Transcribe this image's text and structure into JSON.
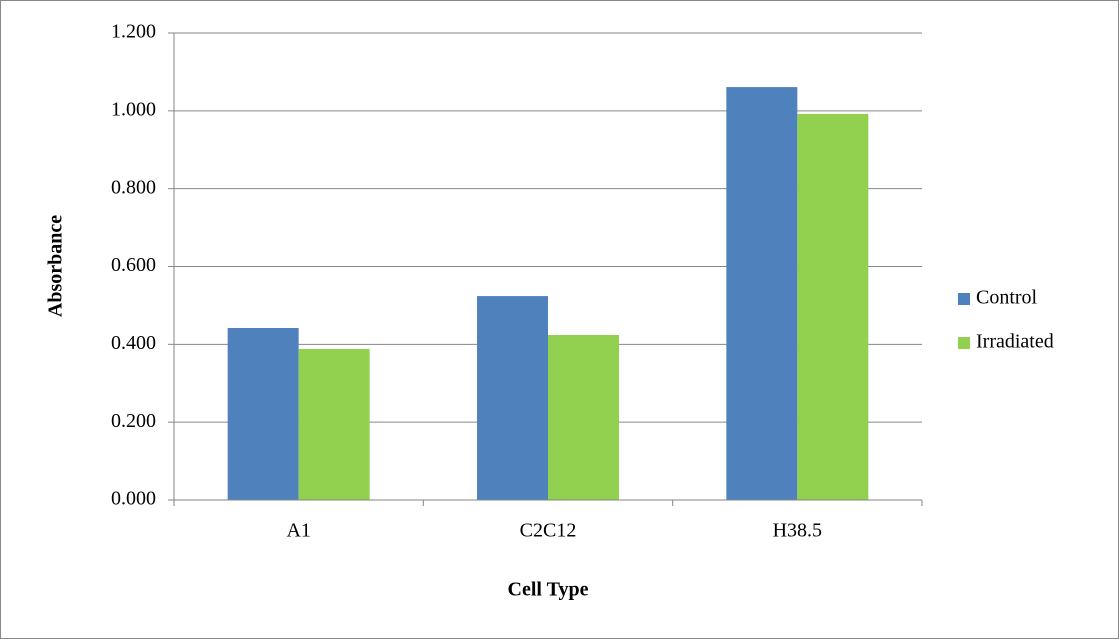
{
  "chart_data": {
    "type": "bar",
    "categories": [
      "A1",
      "C2C12",
      "H38.5"
    ],
    "series": [
      {
        "name": "Control",
        "color": "#4f81bd",
        "values": [
          0.442,
          0.524,
          1.061
        ]
      },
      {
        "name": "Irradiated",
        "color": "#92d050",
        "values": [
          0.388,
          0.424,
          0.992
        ]
      }
    ],
    "x_label": "Cell Type",
    "y_label": "Absorbance",
    "ylim": [
      0,
      1.2
    ],
    "yticks": [
      {
        "value": 0,
        "label": "0.000"
      },
      {
        "value": 0.2,
        "label": "0.200"
      },
      {
        "value": 0.4,
        "label": "0.400"
      },
      {
        "value": 0.6,
        "label": "0.600"
      },
      {
        "value": 0.8,
        "label": "0.800"
      },
      {
        "value": 1.0,
        "label": "1.000"
      },
      {
        "value": 1.2,
        "label": "1.200"
      }
    ],
    "grid": true,
    "legend": "right"
  }
}
